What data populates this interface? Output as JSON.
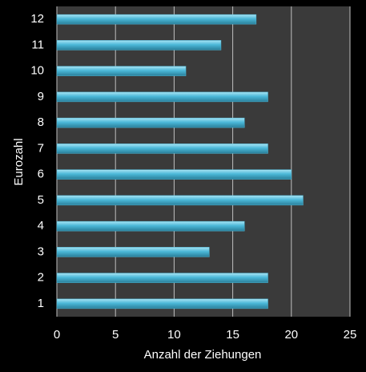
{
  "chart_data": {
    "type": "bar",
    "orientation": "horizontal",
    "xlabel": "Anzahl der Ziehungen",
    "ylabel": "Eurozahl",
    "categories": [
      "1",
      "2",
      "3",
      "4",
      "5",
      "6",
      "7",
      "8",
      "9",
      "10",
      "11",
      "12"
    ],
    "values": [
      18,
      18,
      13,
      16,
      21,
      20,
      18,
      16,
      18,
      11,
      14,
      17
    ],
    "color": "#4bb8d8",
    "xlim": [
      0,
      25
    ],
    "xticks": [
      0,
      5,
      10,
      15,
      20,
      25
    ],
    "grid": true
  }
}
